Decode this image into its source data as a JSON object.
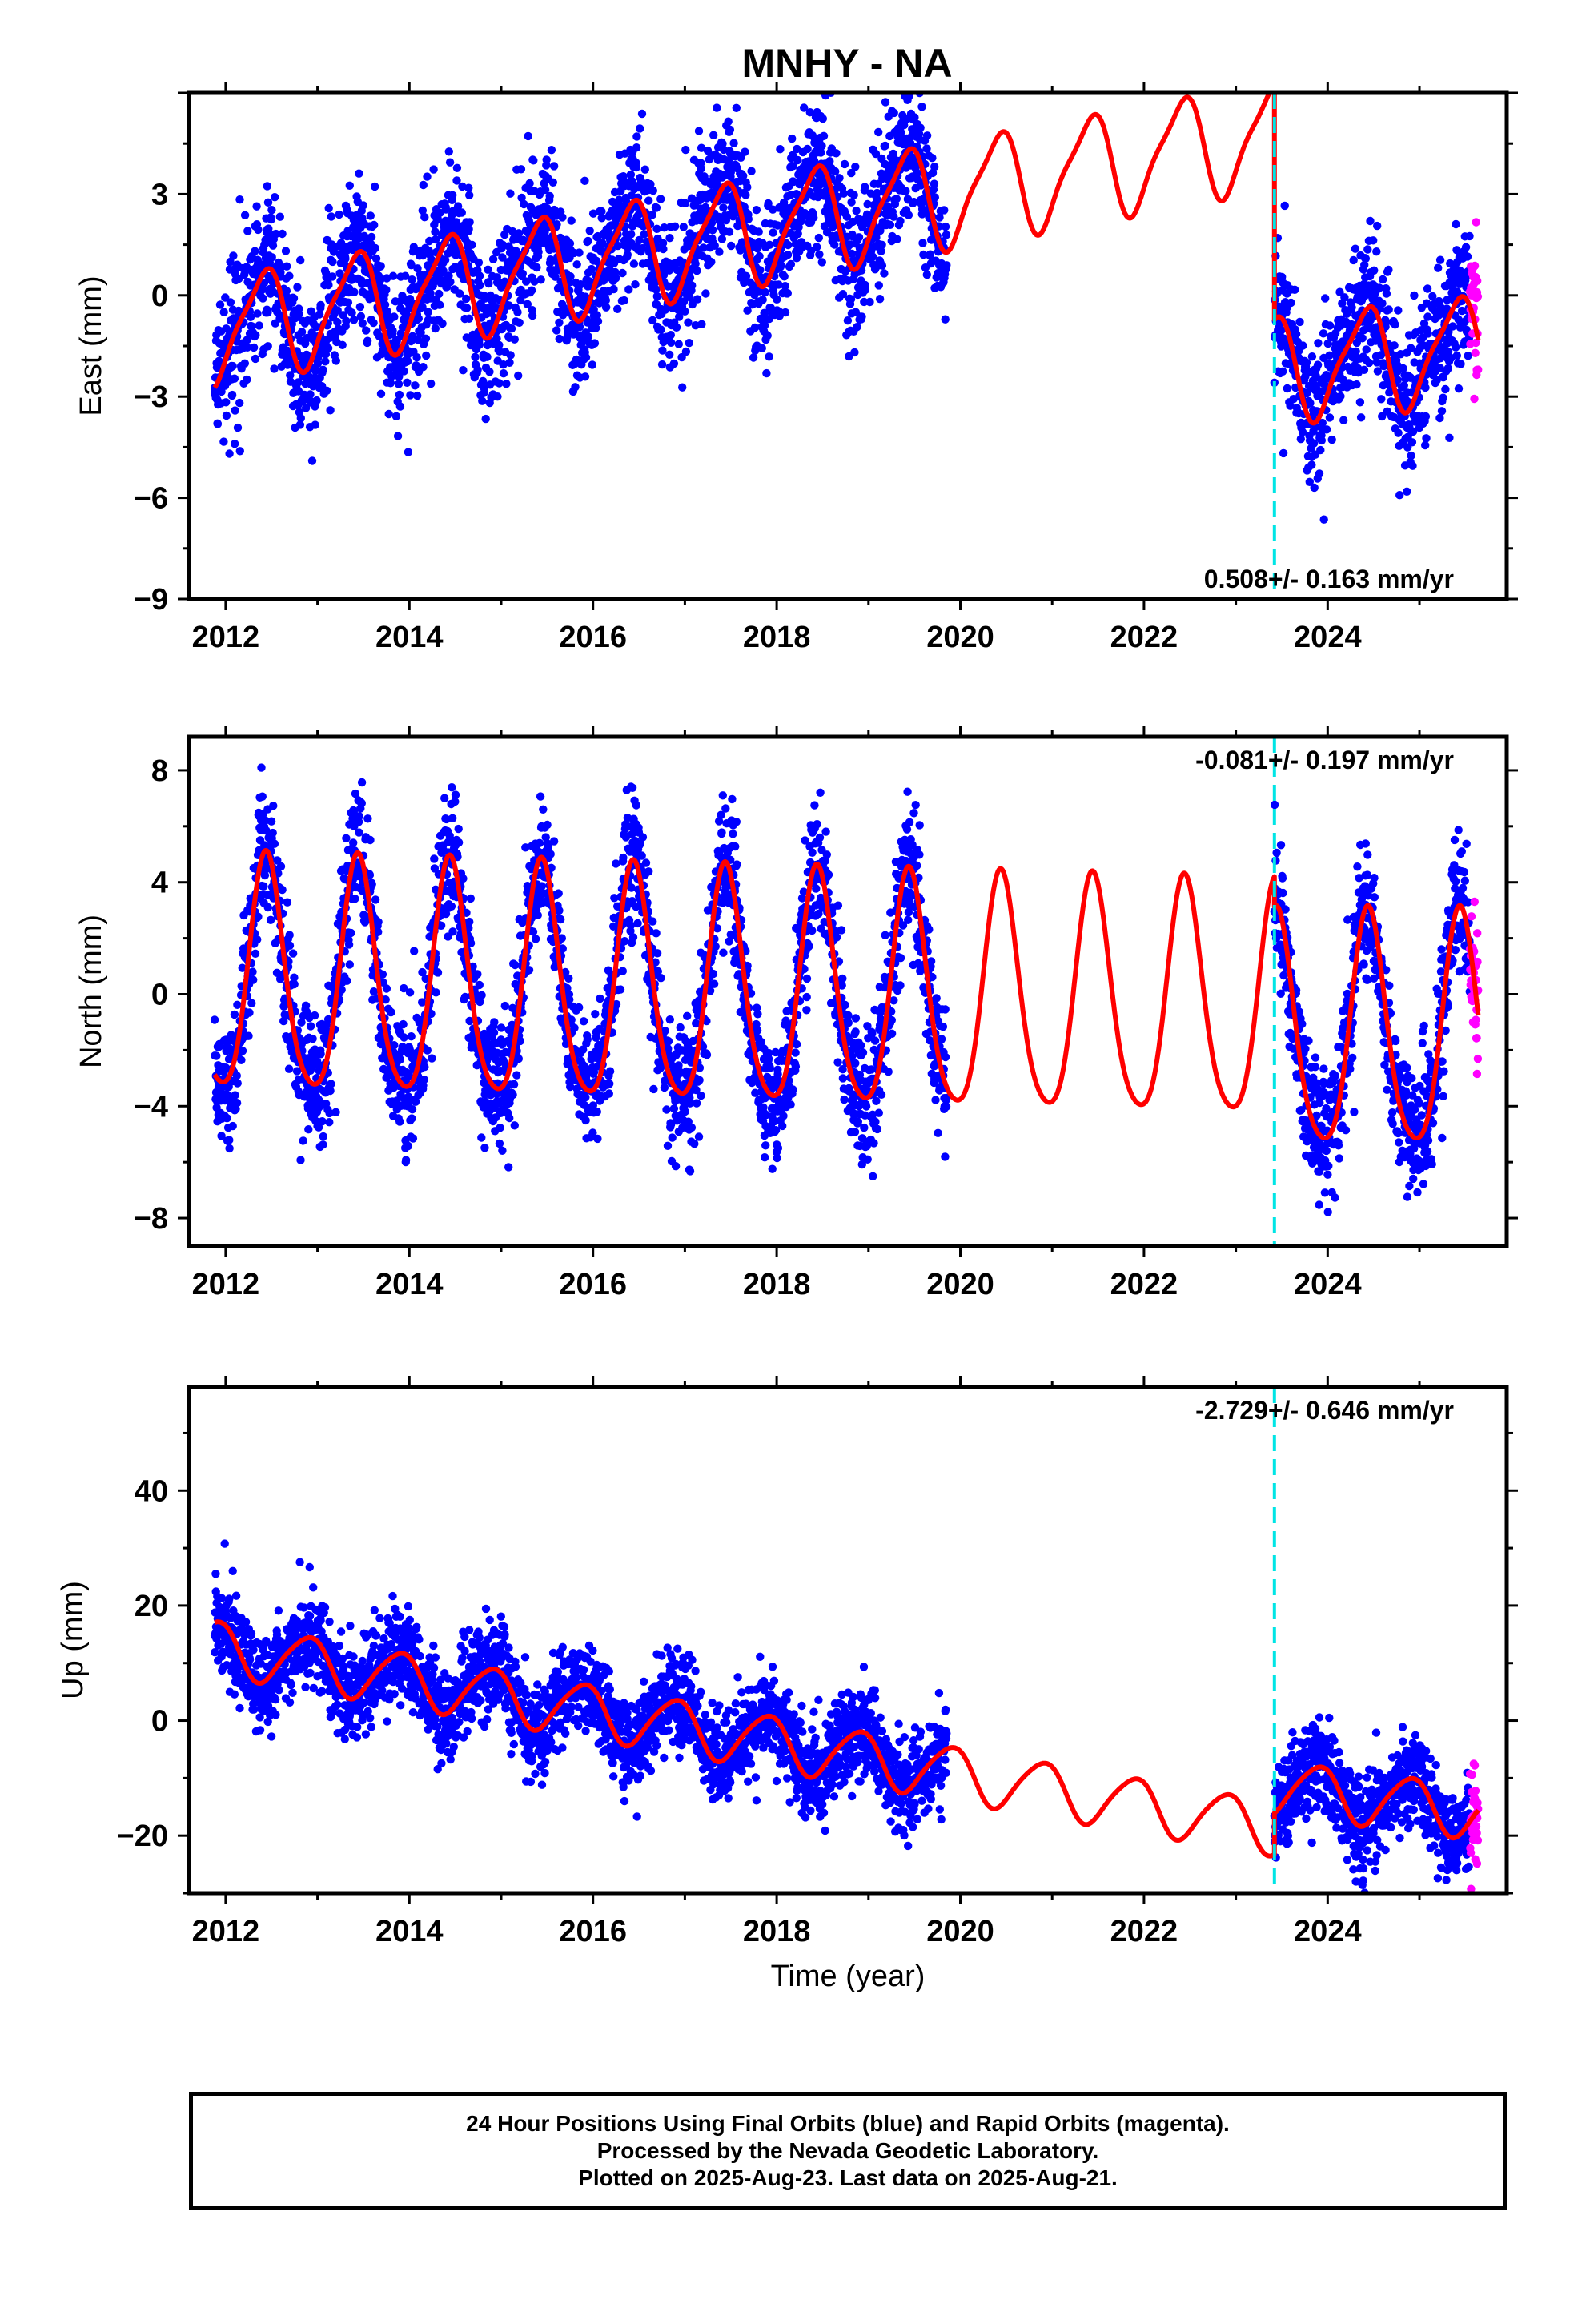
{
  "title": "MNHY - NA",
  "chart_data": [
    {
      "type": "scatter",
      "panel": "east",
      "ylabel": "East (mm)",
      "xlabel": "",
      "xlim": [
        2011.6,
        2025.95
      ],
      "ylim": [
        -9,
        6
      ],
      "yticks": [
        -9,
        -6,
        -3,
        0,
        3
      ],
      "ytick_labels": [
        "−9",
        "−6",
        "−3",
        "0",
        "3"
      ],
      "xticks": [
        2012,
        2014,
        2016,
        2018,
        2020,
        2022,
        2024
      ],
      "xtick_labels": [
        "2012",
        "2014",
        "2016",
        "2018",
        "2020",
        "2022",
        "2024"
      ],
      "rate_label": "0.508+/- 0.163 mm/yr",
      "break_year": 2023.42,
      "data_gap": [
        2019.85,
        2023.42
      ],
      "rapid_start": 2025.55,
      "model": {
        "t0": 2012.0,
        "offset_before": -1.0,
        "rate_before": 0.508,
        "offset_after": -2.2,
        "rate_after": 0.3,
        "ann_cos": -1.2,
        "ann_sin": 0.9,
        "semi_cos": 0.3,
        "semi_sin": 0.2,
        "noise": 1.1
      },
      "series": [
        {
          "label": "Final Orbits",
          "color": "#0000ff",
          "kind": "points"
        },
        {
          "label": "Rapid Orbits",
          "color": "#ff00ff",
          "kind": "points"
        },
        {
          "label": "Model",
          "color": "#ff0000",
          "kind": "line"
        }
      ]
    },
    {
      "type": "scatter",
      "panel": "north",
      "ylabel": "North (mm)",
      "xlabel": "",
      "xlim": [
        2011.6,
        2025.95
      ],
      "ylim": [
        -9,
        9.2
      ],
      "yticks": [
        -8,
        -4,
        0,
        4,
        8
      ],
      "ytick_labels": [
        "−8",
        "−4",
        "0",
        "4",
        "8"
      ],
      "xticks": [
        2012,
        2014,
        2016,
        2018,
        2020,
        2022,
        2024
      ],
      "xtick_labels": [
        "2012",
        "2014",
        "2016",
        "2018",
        "2020",
        "2022",
        "2024"
      ],
      "rate_label": "-0.081+/- 0.197 mm/yr",
      "break_year": 2023.42,
      "data_gap": [
        2019.85,
        2023.42
      ],
      "rapid_start": 2025.55,
      "model": {
        "t0": 2012.0,
        "offset_before": 0.4,
        "rate_before": -0.081,
        "offset_after": -1.6,
        "rate_after": 0.0,
        "ann_cos": -3.9,
        "ann_sin": 1.4,
        "semi_cos": 0.4,
        "semi_sin": -0.5,
        "noise": 1.2
      },
      "series": [
        {
          "label": "Final Orbits",
          "color": "#0000ff",
          "kind": "points"
        },
        {
          "label": "Rapid Orbits",
          "color": "#ff00ff",
          "kind": "points"
        },
        {
          "label": "Model",
          "color": "#ff0000",
          "kind": "line"
        }
      ]
    },
    {
      "type": "scatter",
      "panel": "up",
      "ylabel": "Up (mm)",
      "xlabel": "Time (year)",
      "xlim": [
        2011.6,
        2025.95
      ],
      "ylim": [
        -30,
        58
      ],
      "yticks": [
        -20,
        0,
        20,
        40
      ],
      "ytick_labels": [
        "−20",
        "0",
        "20",
        "40"
      ],
      "xticks": [
        2012,
        2014,
        2016,
        2018,
        2020,
        2022,
        2024
      ],
      "xtick_labels": [
        "2012",
        "2014",
        "2016",
        "2018",
        "2020",
        "2022",
        "2024"
      ],
      "rate_label": "-2.729+/- 0.646 mm/yr",
      "break_year": 2023.42,
      "data_gap": [
        2019.85,
        2023.42
      ],
      "rapid_start": 2025.55,
      "model": {
        "t0": 2012.0,
        "offset_before": 12.5,
        "rate_before": -2.729,
        "offset_after": -11.5,
        "rate_after": -2.0,
        "ann_cos": 3.5,
        "ann_sin": -3.0,
        "semi_cos": 0.5,
        "semi_sin": 0.4,
        "noise": 4.0
      },
      "series": [
        {
          "label": "Final Orbits",
          "color": "#0000ff",
          "kind": "points"
        },
        {
          "label": "Rapid Orbits",
          "color": "#ff00ff",
          "kind": "points"
        },
        {
          "label": "Model",
          "color": "#ff0000",
          "kind": "line"
        }
      ]
    }
  ],
  "colors": {
    "final": "#0000ff",
    "rapid": "#ff00ff",
    "model": "#ff0000",
    "break_line": "#00e5e5"
  },
  "caption": {
    "line1": "24 Hour Positions Using Final Orbits (blue) and Rapid Orbits (magenta).",
    "line2": "Processed by the Nevada Geodetic Laboratory.",
    "line3": "Plotted on 2025-Aug-23. Last data on 2025-Aug-21."
  }
}
